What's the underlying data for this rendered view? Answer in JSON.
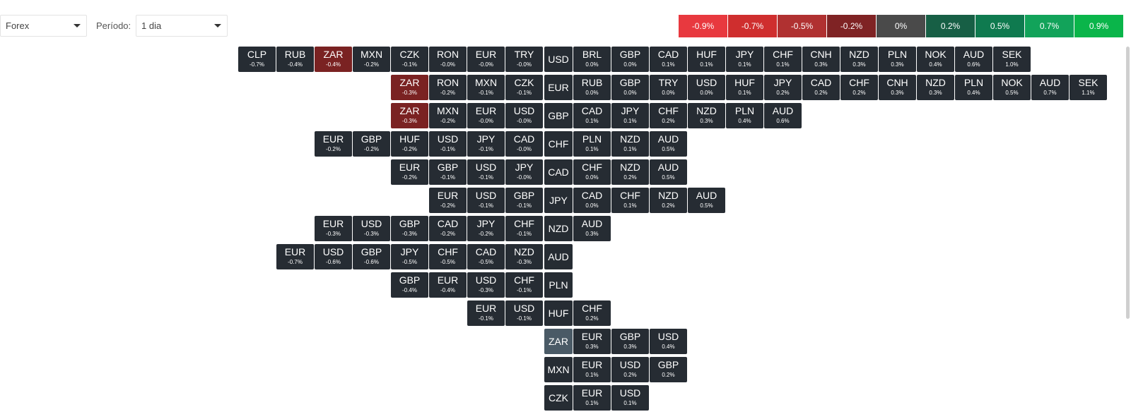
{
  "toolbar": {
    "market": "Forex",
    "period_label": "Período:",
    "period": "1 dia"
  },
  "legend": [
    {
      "label": "-0.9%",
      "color": "#e8393f"
    },
    {
      "label": "-0.7%",
      "color": "#cf2e2e"
    },
    {
      "label": "-0.5%",
      "color": "#b03131"
    },
    {
      "label": "-0.2%",
      "color": "#7f2324"
    },
    {
      "label": "0%",
      "color": "#4a4a4a"
    },
    {
      "label": "0.2%",
      "color": "#175f45"
    },
    {
      "label": "0.5%",
      "color": "#0f7a4f"
    },
    {
      "label": "0.7%",
      "color": "#12a35a"
    },
    {
      "label": "0.9%",
      "color": "#0ab54a"
    }
  ],
  "colors": {
    "cell_default": "#262c33",
    "cell_negative_highlight": "#7a2222",
    "base_highlight": "#4a5a66"
  },
  "rows": [
    {
      "base": "USD",
      "left": [
        {
          "code": "CLP",
          "pct": "-0.7%"
        },
        {
          "code": "RUB",
          "pct": "-0.4%"
        },
        {
          "code": "ZAR",
          "pct": "-0.4%",
          "hl": true
        },
        {
          "code": "MXN",
          "pct": "-0.2%"
        },
        {
          "code": "CZK",
          "pct": "-0.1%"
        },
        {
          "code": "RON",
          "pct": "-0.0%"
        },
        {
          "code": "EUR",
          "pct": "-0.0%"
        },
        {
          "code": "TRY",
          "pct": "-0.0%"
        }
      ],
      "right": [
        {
          "code": "BRL",
          "pct": "0.0%"
        },
        {
          "code": "GBP",
          "pct": "0.0%"
        },
        {
          "code": "CAD",
          "pct": "0.1%"
        },
        {
          "code": "HUF",
          "pct": "0.1%"
        },
        {
          "code": "JPY",
          "pct": "0.1%"
        },
        {
          "code": "CHF",
          "pct": "0.1%"
        },
        {
          "code": "CNH",
          "pct": "0.3%"
        },
        {
          "code": "NZD",
          "pct": "0.3%"
        },
        {
          "code": "PLN",
          "pct": "0.3%"
        },
        {
          "code": "NOK",
          "pct": "0.4%"
        },
        {
          "code": "AUD",
          "pct": "0.6%"
        },
        {
          "code": "SEK",
          "pct": "1.0%"
        }
      ]
    },
    {
      "base": "EUR",
      "left": [
        {
          "code": "ZAR",
          "pct": "-0.3%",
          "hl": true
        },
        {
          "code": "RON",
          "pct": "-0.2%"
        },
        {
          "code": "MXN",
          "pct": "-0.1%"
        },
        {
          "code": "CZK",
          "pct": "-0.1%"
        }
      ],
      "right": [
        {
          "code": "RUB",
          "pct": "0.0%"
        },
        {
          "code": "GBP",
          "pct": "0.0%"
        },
        {
          "code": "TRY",
          "pct": "0.0%"
        },
        {
          "code": "USD",
          "pct": "0.0%"
        },
        {
          "code": "HUF",
          "pct": "0.1%"
        },
        {
          "code": "JPY",
          "pct": "0.2%"
        },
        {
          "code": "CAD",
          "pct": "0.2%"
        },
        {
          "code": "CHF",
          "pct": "0.2%"
        },
        {
          "code": "CNH",
          "pct": "0.3%"
        },
        {
          "code": "NZD",
          "pct": "0.3%"
        },
        {
          "code": "PLN",
          "pct": "0.4%"
        },
        {
          "code": "NOK",
          "pct": "0.5%"
        },
        {
          "code": "AUD",
          "pct": "0.7%"
        },
        {
          "code": "SEK",
          "pct": "1.1%"
        }
      ]
    },
    {
      "base": "GBP",
      "left": [
        {
          "code": "ZAR",
          "pct": "-0.3%",
          "hl": true
        },
        {
          "code": "MXN",
          "pct": "-0.2%"
        },
        {
          "code": "EUR",
          "pct": "-0.0%"
        },
        {
          "code": "USD",
          "pct": "-0.0%"
        }
      ],
      "right": [
        {
          "code": "CAD",
          "pct": "0.1%"
        },
        {
          "code": "JPY",
          "pct": "0.1%"
        },
        {
          "code": "CHF",
          "pct": "0.2%"
        },
        {
          "code": "NZD",
          "pct": "0.3%"
        },
        {
          "code": "PLN",
          "pct": "0.4%"
        },
        {
          "code": "AUD",
          "pct": "0.6%"
        }
      ]
    },
    {
      "base": "CHF",
      "left": [
        {
          "code": "EUR",
          "pct": "-0.2%"
        },
        {
          "code": "GBP",
          "pct": "-0.2%"
        },
        {
          "code": "HUF",
          "pct": "-0.2%"
        },
        {
          "code": "USD",
          "pct": "-0.1%"
        },
        {
          "code": "JPY",
          "pct": "-0.1%"
        },
        {
          "code": "CAD",
          "pct": "-0.0%"
        }
      ],
      "right": [
        {
          "code": "PLN",
          "pct": "0.1%"
        },
        {
          "code": "NZD",
          "pct": "0.1%"
        },
        {
          "code": "AUD",
          "pct": "0.5%"
        }
      ]
    },
    {
      "base": "CAD",
      "left": [
        {
          "code": "EUR",
          "pct": "-0.2%"
        },
        {
          "code": "GBP",
          "pct": "-0.1%"
        },
        {
          "code": "USD",
          "pct": "-0.1%"
        },
        {
          "code": "JPY",
          "pct": "-0.0%"
        }
      ],
      "right": [
        {
          "code": "CHF",
          "pct": "0.0%"
        },
        {
          "code": "NZD",
          "pct": "0.2%"
        },
        {
          "code": "AUD",
          "pct": "0.5%"
        }
      ]
    },
    {
      "base": "JPY",
      "left": [
        {
          "code": "EUR",
          "pct": "-0.2%"
        },
        {
          "code": "USD",
          "pct": "-0.1%"
        },
        {
          "code": "GBP",
          "pct": "-0.1%"
        }
      ],
      "right": [
        {
          "code": "CAD",
          "pct": "0.0%"
        },
        {
          "code": "CHF",
          "pct": "0.1%"
        },
        {
          "code": "NZD",
          "pct": "0.2%"
        },
        {
          "code": "AUD",
          "pct": "0.5%"
        }
      ]
    },
    {
      "base": "NZD",
      "left": [
        {
          "code": "EUR",
          "pct": "-0.3%"
        },
        {
          "code": "USD",
          "pct": "-0.3%"
        },
        {
          "code": "GBP",
          "pct": "-0.3%"
        },
        {
          "code": "CAD",
          "pct": "-0.2%"
        },
        {
          "code": "JPY",
          "pct": "-0.2%"
        },
        {
          "code": "CHF",
          "pct": "-0.1%"
        }
      ],
      "right": [
        {
          "code": "AUD",
          "pct": "0.3%"
        }
      ]
    },
    {
      "base": "AUD",
      "left": [
        {
          "code": "EUR",
          "pct": "-0.7%"
        },
        {
          "code": "USD",
          "pct": "-0.6%"
        },
        {
          "code": "GBP",
          "pct": "-0.6%"
        },
        {
          "code": "JPY",
          "pct": "-0.5%"
        },
        {
          "code": "CHF",
          "pct": "-0.5%"
        },
        {
          "code": "CAD",
          "pct": "-0.5%"
        },
        {
          "code": "NZD",
          "pct": "-0.3%"
        }
      ],
      "right": []
    },
    {
      "base": "PLN",
      "left": [
        {
          "code": "GBP",
          "pct": "-0.4%"
        },
        {
          "code": "EUR",
          "pct": "-0.4%"
        },
        {
          "code": "USD",
          "pct": "-0.3%"
        },
        {
          "code": "CHF",
          "pct": "-0.1%"
        }
      ],
      "right": []
    },
    {
      "base": "HUF",
      "left": [
        {
          "code": "EUR",
          "pct": "-0.1%"
        },
        {
          "code": "USD",
          "pct": "-0.1%"
        }
      ],
      "right": [
        {
          "code": "CHF",
          "pct": "0.2%"
        }
      ]
    },
    {
      "base": "ZAR",
      "base_hl": true,
      "left": [],
      "right": [
        {
          "code": "EUR",
          "pct": "0.3%"
        },
        {
          "code": "GBP",
          "pct": "0.3%"
        },
        {
          "code": "USD",
          "pct": "0.4%"
        }
      ]
    },
    {
      "base": "MXN",
      "left": [],
      "right": [
        {
          "code": "EUR",
          "pct": "0.1%"
        },
        {
          "code": "USD",
          "pct": "0.2%"
        },
        {
          "code": "GBP",
          "pct": "0.2%"
        }
      ]
    },
    {
      "base": "CZK",
      "left": [],
      "right": [
        {
          "code": "EUR",
          "pct": "0.1%"
        },
        {
          "code": "USD",
          "pct": "0.1%"
        }
      ]
    }
  ]
}
